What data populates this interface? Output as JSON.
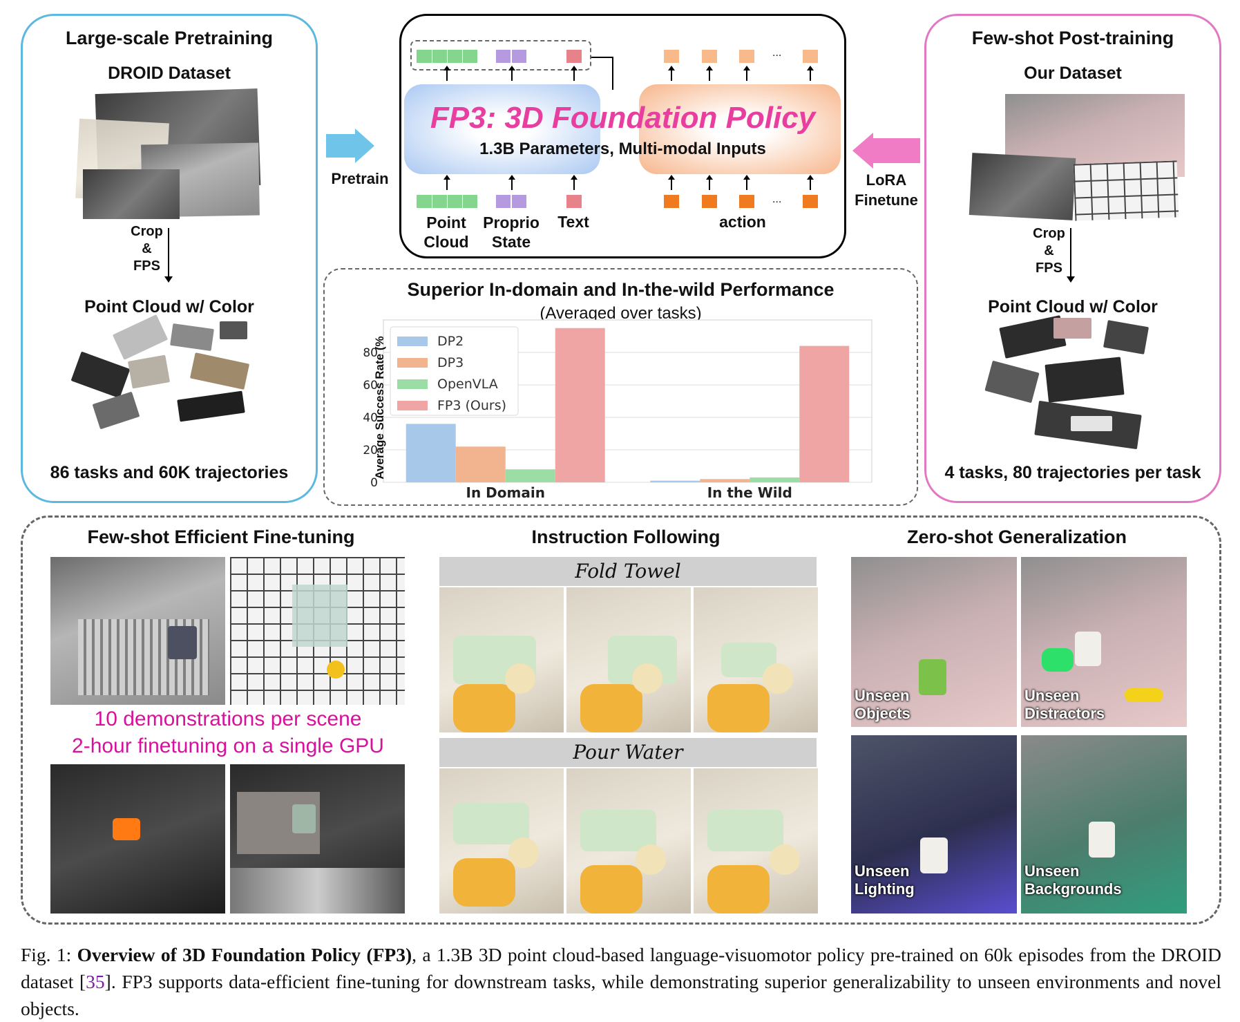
{
  "pretraining": {
    "title": "Large-scale Pretraining",
    "dataset": "DROID Dataset",
    "crop_fps": [
      "Crop",
      "&",
      "FPS"
    ],
    "point_cloud_label": "Point Cloud w/ Color",
    "stats": "86 tasks and 60K trajectories",
    "border_color": "#5cb8de"
  },
  "posttraining": {
    "title": "Few-shot Post-training",
    "dataset": "Our Dataset",
    "crop_fps": [
      "Crop",
      "&",
      "FPS"
    ],
    "point_cloud_label": "Point Cloud w/ Color",
    "stats": "4 tasks, 80 trajectories per task",
    "border_color": "#e377c2"
  },
  "model": {
    "title": "FP3: 3D Foundation Policy",
    "subtitle": "1.3B Parameters, Multi-modal Inputs",
    "input_labels": {
      "point_cloud": [
        "Point",
        "Cloud"
      ],
      "proprio": [
        "Proprio",
        "State"
      ],
      "text": "Text",
      "action": "action",
      "ellipsis": "..."
    },
    "pretrain_label": "Pretrain",
    "lora_label": [
      "LoRA",
      "Finetune"
    ],
    "colors": {
      "title": "#e83ea0",
      "point_token": "#84d68e",
      "proprio_token": "#b59ae0",
      "text_token": "#e8828a",
      "action_out_token": "#f8b98b",
      "action_in_token": "#f07a20",
      "encoder_box": "#aac8f2",
      "decoder_box": "#f7b58a",
      "pretrain_arrow": "#6fc4ea",
      "lora_arrow": "#f07cc5"
    }
  },
  "performance": {
    "title": "Superior In-domain and In-the-wild Performance",
    "subtitle": "(Averaged over tasks)"
  },
  "chart_data": {
    "type": "bar",
    "categories": [
      "In Domain",
      "In the Wild"
    ],
    "series": [
      {
        "name": "DP2",
        "values": [
          36,
          1
        ],
        "color": "#a8c8ea"
      },
      {
        "name": "DP3",
        "values": [
          22,
          2
        ],
        "color": "#f2b48e"
      },
      {
        "name": "OpenVLA",
        "values": [
          8,
          3
        ],
        "color": "#9cdca5"
      },
      {
        "name": "FP3 (Ours)",
        "values": [
          95,
          84
        ],
        "color": "#f0a5a5"
      }
    ],
    "ylabel": "Average Success Rate (%",
    "yticks": [
      "0",
      "20",
      "40",
      "60",
      "80"
    ],
    "ylim": [
      0,
      100
    ],
    "grid": true,
    "legend_position": "top-left"
  },
  "bottom": {
    "finetuning": {
      "title": "Few-shot Efficient Fine-tuning",
      "overlay_line1": "10 demonstrations per scene",
      "overlay_line2": "2-hour finetuning on a single GPU"
    },
    "instruction": {
      "title": "Instruction Following",
      "task1": "Fold Towel",
      "task2": "Pour Water"
    },
    "zeroshot": {
      "title": "Zero-shot Generalization",
      "labels": [
        [
          "Unseen",
          "Objects"
        ],
        [
          "Unseen",
          "Distractors"
        ],
        [
          "Unseen",
          "Lighting"
        ],
        [
          "Unseen",
          "Backgrounds"
        ]
      ]
    }
  },
  "caption": {
    "prefix": "Fig. 1: ",
    "bold": "Overview of 3D Foundation Policy (FP3)",
    "text1": ", a 1.3B 3D point cloud-based language-visuomotor policy pre-trained on 60k episodes from the DROID dataset [",
    "ref": "35",
    "text2": "]. FP3 supports data-efficient fine-tuning for downstream tasks, while demonstrating superior generalizability to unseen environments and novel objects."
  }
}
